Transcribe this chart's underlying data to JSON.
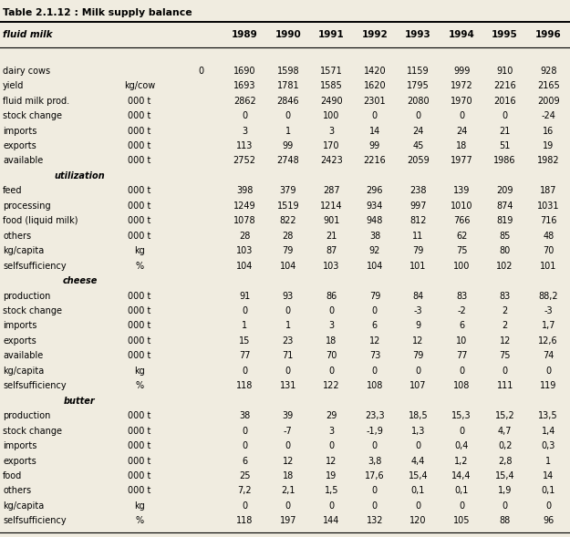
{
  "title": "Table 2.1.12 : Milk supply balance",
  "bg_color": "#f0ece0",
  "year_headers": [
    "1989",
    "1990",
    "1991",
    "1992",
    "1993",
    "1994",
    "1995",
    "1996"
  ],
  "rows": [
    {
      "label": "fluid milk",
      "unit": "",
      "vals": [
        "",
        "",
        "",
        "",
        "",
        "",
        "",
        "",
        ""
      ],
      "section": true
    },
    {
      "label": "dairy cows",
      "unit": "",
      "vals": [
        "0",
        "1690",
        "1598",
        "1571",
        "1420",
        "1159",
        "999",
        "910",
        "928"
      ]
    },
    {
      "label": "yield",
      "unit": "kg/cow",
      "vals": [
        "",
        "1693",
        "1781",
        "1585",
        "1620",
        "1795",
        "1972",
        "2216",
        "2165"
      ]
    },
    {
      "label": "fluid milk prod.",
      "unit": "000 t",
      "vals": [
        "",
        "2862",
        "2846",
        "2490",
        "2301",
        "2080",
        "1970",
        "2016",
        "2009"
      ]
    },
    {
      "label": "stock change",
      "unit": "000 t",
      "vals": [
        "",
        "0",
        "0",
        "100",
        "0",
        "0",
        "0",
        "0",
        "-24"
      ]
    },
    {
      "label": "imports",
      "unit": "000 t",
      "vals": [
        "",
        "3",
        "1",
        "3",
        "14",
        "24",
        "24",
        "21",
        "16"
      ]
    },
    {
      "label": "exports",
      "unit": "000 t",
      "vals": [
        "",
        "113",
        "99",
        "170",
        "99",
        "45",
        "18",
        "51",
        "19"
      ]
    },
    {
      "label": "available",
      "unit": "000 t",
      "vals": [
        "",
        "2752",
        "2748",
        "2423",
        "2216",
        "2059",
        "1977",
        "1986",
        "1982"
      ]
    },
    {
      "label": "utilization",
      "unit": "",
      "vals": [
        "",
        "",
        "",
        "",
        "",
        "",
        "",
        "",
        ""
      ],
      "section": true
    },
    {
      "label": "feed",
      "unit": "000 t",
      "vals": [
        "",
        "398",
        "379",
        "287",
        "296",
        "238",
        "139",
        "209",
        "187"
      ]
    },
    {
      "label": "processing",
      "unit": "000 t",
      "vals": [
        "",
        "1249",
        "1519",
        "1214",
        "934",
        "997",
        "1010",
        "874",
        "1031"
      ]
    },
    {
      "label": "food (liquid milk)",
      "unit": "000 t",
      "vals": [
        "",
        "1078",
        "822",
        "901",
        "948",
        "812",
        "766",
        "819",
        "716"
      ]
    },
    {
      "label": "others",
      "unit": "000 t",
      "vals": [
        "",
        "28",
        "28",
        "21",
        "38",
        "11",
        "62",
        "85",
        "48"
      ]
    },
    {
      "label": "kg/capita",
      "unit": "kg",
      "vals": [
        "",
        "103",
        "79",
        "87",
        "92",
        "79",
        "75",
        "80",
        "70"
      ]
    },
    {
      "label": "selfsufficiency",
      "unit": "%",
      "vals": [
        "",
        "104",
        "104",
        "103",
        "104",
        "101",
        "100",
        "102",
        "101"
      ]
    },
    {
      "label": "cheese",
      "unit": "",
      "vals": [
        "",
        "",
        "",
        "",
        "",
        "",
        "",
        "",
        ""
      ],
      "section": true
    },
    {
      "label": "production",
      "unit": "000 t",
      "vals": [
        "",
        "91",
        "93",
        "86",
        "79",
        "84",
        "83",
        "83",
        "88,2"
      ]
    },
    {
      "label": "stock change",
      "unit": "000 t",
      "vals": [
        "",
        "0",
        "0",
        "0",
        "0",
        "-3",
        "-2",
        "2",
        "-3"
      ]
    },
    {
      "label": "imports",
      "unit": "000 t",
      "vals": [
        "",
        "1",
        "1",
        "3",
        "6",
        "9",
        "6",
        "2",
        "1,7"
      ]
    },
    {
      "label": "exports",
      "unit": "000 t",
      "vals": [
        "",
        "15",
        "23",
        "18",
        "12",
        "12",
        "10",
        "12",
        "12,6"
      ]
    },
    {
      "label": "available",
      "unit": "000 t",
      "vals": [
        "",
        "77",
        "71",
        "70",
        "73",
        "79",
        "77",
        "75",
        "74"
      ]
    },
    {
      "label": "kg/capita",
      "unit": "kg",
      "vals": [
        "",
        "0",
        "0",
        "0",
        "0",
        "0",
        "0",
        "0",
        "0"
      ]
    },
    {
      "label": "selfsufficiency",
      "unit": "%",
      "vals": [
        "",
        "118",
        "131",
        "122",
        "108",
        "107",
        "108",
        "111",
        "119"
      ]
    },
    {
      "label": "butter",
      "unit": "",
      "vals": [
        "",
        "",
        "",
        "",
        "",
        "",
        "",
        "",
        ""
      ],
      "section": true
    },
    {
      "label": "production",
      "unit": "000 t",
      "vals": [
        "",
        "38",
        "39",
        "29",
        "23,3",
        "18,5",
        "15,3",
        "15,2",
        "13,5"
      ]
    },
    {
      "label": "stock change",
      "unit": "000 t",
      "vals": [
        "",
        "0",
        "-7",
        "3",
        "-1,9",
        "1,3",
        "0",
        "4,7",
        "1,4"
      ]
    },
    {
      "label": "imports",
      "unit": "000 t",
      "vals": [
        "",
        "0",
        "0",
        "0",
        "0",
        "0",
        "0,4",
        "0,2",
        "0,3"
      ]
    },
    {
      "label": "exports",
      "unit": "000 t",
      "vals": [
        "",
        "6",
        "12",
        "12",
        "3,8",
        "4,4",
        "1,2",
        "2,8",
        "1"
      ]
    },
    {
      "label": "food",
      "unit": "000 t",
      "vals": [
        "",
        "25",
        "18",
        "19",
        "17,6",
        "15,4",
        "14,4",
        "15,4",
        "14"
      ]
    },
    {
      "label": "others",
      "unit": "000 t",
      "vals": [
        "",
        "7,2",
        "2,1",
        "1,5",
        "0",
        "0,1",
        "0,1",
        "1,9",
        "0,1"
      ]
    },
    {
      "label": "kg/capita",
      "unit": "kg",
      "vals": [
        "",
        "0",
        "0",
        "0",
        "0",
        "0",
        "0",
        "0",
        "0"
      ]
    },
    {
      "label": "selfsufficiency",
      "unit": "%",
      "vals": [
        "",
        "118",
        "197",
        "144",
        "132",
        "120",
        "105",
        "88",
        "96"
      ]
    }
  ]
}
